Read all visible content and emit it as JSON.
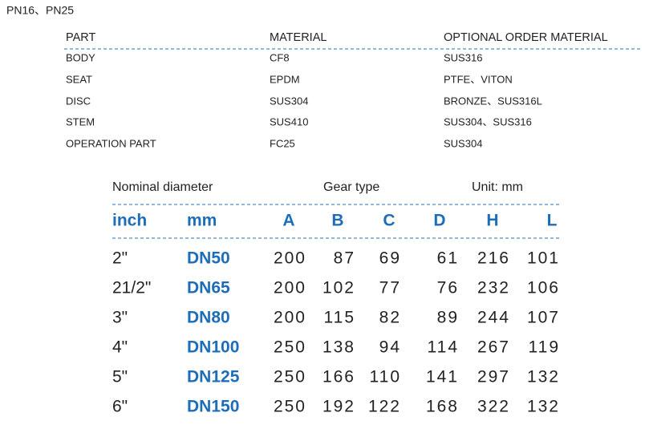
{
  "heading": "PN16、PN25",
  "materials": {
    "header": [
      "PART",
      "MATERIAL",
      "OPTIONAL ORDER MATERIAL"
    ],
    "rows": [
      [
        "BODY",
        "CF8",
        "SUS316"
      ],
      [
        "SEAT",
        "EPDM",
        "PTFE、VITON"
      ],
      [
        "DISC",
        "SUS304",
        "BRONZE、SUS316L"
      ],
      [
        "STEM",
        "SUS410",
        "SUS304、SUS316"
      ],
      [
        "OPERATION PART",
        "FC25",
        "SUS304"
      ]
    ]
  },
  "dimensions": {
    "caption": [
      "Nominal diameter",
      "Gear type",
      "Unit: mm"
    ],
    "header": [
      "inch",
      "mm",
      "A",
      "B",
      "C",
      "D",
      "H",
      "L"
    ],
    "rows": [
      [
        "2\"",
        "DN50",
        200,
        87,
        69,
        61,
        216,
        101
      ],
      [
        "21/2\"",
        "DN65",
        200,
        102,
        77,
        76,
        232,
        106
      ],
      [
        "3\"",
        "DN80",
        200,
        115,
        82,
        89,
        244,
        107
      ],
      [
        "4\"",
        "DN100",
        250,
        138,
        94,
        114,
        267,
        119
      ],
      [
        "5\"",
        "DN125",
        250,
        166,
        110,
        141,
        297,
        132
      ],
      [
        "6\"",
        "DN150",
        250,
        192,
        122,
        168,
        322,
        132
      ]
    ]
  }
}
